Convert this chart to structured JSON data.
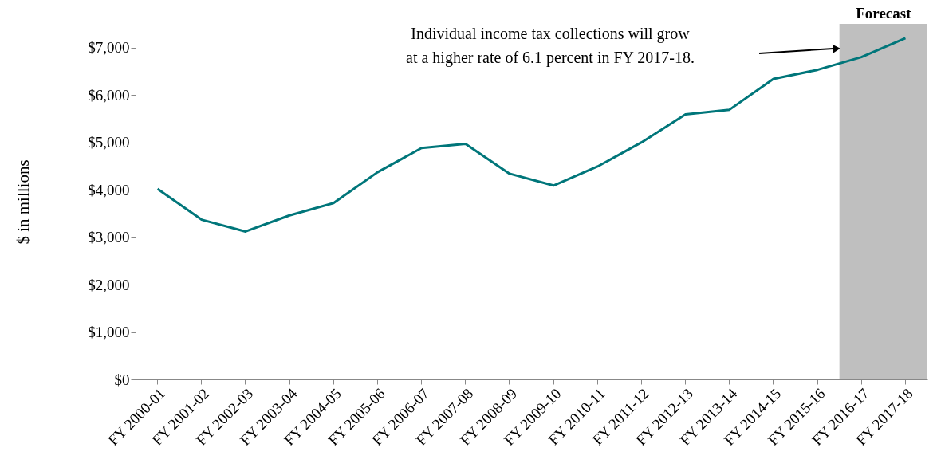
{
  "chart_data": {
    "type": "line",
    "ylabel": "$ in millions",
    "categories": [
      "FY 2000-01",
      "FY 2001-02",
      "FY 2002-03",
      "FY 2003-04",
      "FY 2004-05",
      "FY 2005-06",
      "FY 2006-07",
      "FY 2007-08",
      "FY 2008-09",
      "FY 2009-10",
      "FY 2010-11",
      "FY 2011-12",
      "FY 2012-13",
      "FY 2013-14",
      "FY 2014-15",
      "FY 2015-16",
      "FY 2016-17",
      "FY 2017-18"
    ],
    "series": [
      {
        "color": "#00767a",
        "values": [
          4020,
          3370,
          3120,
          3460,
          3720,
          4370,
          4880,
          4970,
          4340,
          4090,
          4490,
          5000,
          5590,
          5690,
          6340,
          6530,
          6800,
          7200
        ]
      }
    ],
    "ylim": [
      0,
      7500
    ],
    "yticks": [
      {
        "value": 0,
        "label": "$0"
      },
      {
        "value": 1000,
        "label": "$1,000"
      },
      {
        "value": 2000,
        "label": "$2,000"
      },
      {
        "value": 3000,
        "label": "$3,000"
      },
      {
        "value": 4000,
        "label": "$4,000"
      },
      {
        "value": 5000,
        "label": "$5,000"
      },
      {
        "value": 6000,
        "label": "$6,000"
      },
      {
        "value": 7000,
        "label": "$7,000"
      }
    ],
    "bands": [
      {
        "axis": "x",
        "from": "FY 2016-17",
        "to": "FY 2017-18",
        "label": "Forecast",
        "color": "#bfbfbf"
      }
    ],
    "annotations": [
      "Individual income tax collections will grow\nat a higher rate of 6.1 percent in FY 2017-18."
    ],
    "grid": false,
    "marker": "none",
    "line_style": "solid"
  }
}
